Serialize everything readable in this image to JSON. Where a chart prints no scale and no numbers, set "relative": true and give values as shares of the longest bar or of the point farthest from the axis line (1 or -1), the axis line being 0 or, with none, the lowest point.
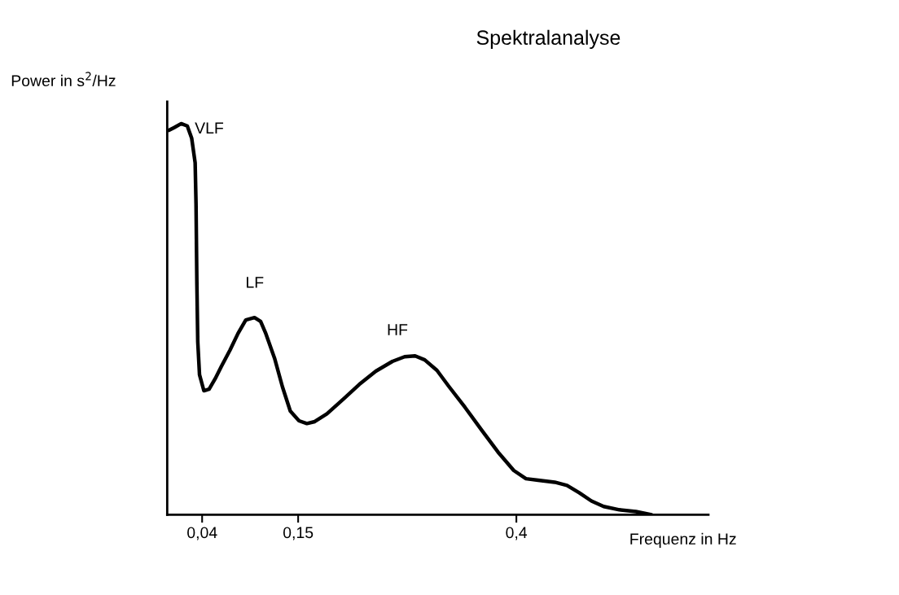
{
  "chart_data": {
    "type": "line",
    "title": "Spektralanalyse",
    "xlabel": "Frequenz in Hz",
    "ylabel": "Power in s$^{2}$/Hz",
    "relative": true,
    "xlim": [
      0,
      0.62
    ],
    "xticks": [
      {
        "value": 0.04,
        "label": "0,04"
      },
      {
        "value": 0.15,
        "label": "0,15"
      },
      {
        "value": 0.4,
        "label": "0,4"
      }
    ],
    "grid": false,
    "legend": false,
    "marker": "none",
    "line_style": "solid",
    "tick_labels": "x",
    "series": [
      {
        "color": "#000000",
        "x": [
          0.002,
          0.008,
          0.016,
          0.023,
          0.028,
          0.032,
          0.033,
          0.034,
          0.035,
          0.037,
          0.042,
          0.048,
          0.055,
          0.062,
          0.072,
          0.081,
          0.09,
          0.1,
          0.107,
          0.113,
          0.123,
          0.132,
          0.141,
          0.151,
          0.16,
          0.169,
          0.183,
          0.202,
          0.22,
          0.239,
          0.258,
          0.272,
          0.284,
          0.295,
          0.309,
          0.323,
          0.341,
          0.36,
          0.379,
          0.397,
          0.411,
          0.425,
          0.444,
          0.458,
          0.472,
          0.486,
          0.5,
          0.518,
          0.537,
          0.555
        ],
        "values": [
          0.983,
          0.99,
          1.0,
          0.994,
          0.963,
          0.9,
          0.796,
          0.588,
          0.442,
          0.358,
          0.317,
          0.321,
          0.348,
          0.379,
          0.421,
          0.463,
          0.498,
          0.504,
          0.494,
          0.463,
          0.4,
          0.327,
          0.265,
          0.24,
          0.233,
          0.238,
          0.258,
          0.296,
          0.333,
          0.367,
          0.392,
          0.404,
          0.406,
          0.396,
          0.369,
          0.327,
          0.275,
          0.217,
          0.16,
          0.113,
          0.092,
          0.088,
          0.083,
          0.075,
          0.056,
          0.035,
          0.021,
          0.0125,
          0.008,
          0.0
        ]
      }
    ],
    "annotations": [
      {
        "text": "VLF",
        "x": 0.016,
        "y": 1.0
      },
      {
        "text": "LF",
        "x": 0.1,
        "y": 0.504
      },
      {
        "text": "HF",
        "x": 0.284,
        "y": 0.406
      }
    ]
  }
}
